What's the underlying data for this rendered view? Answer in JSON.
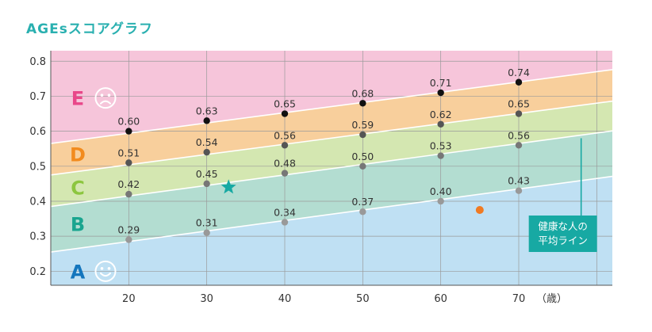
{
  "title": "AGEsスコアグラフ",
  "colors": {
    "title": "#2ab0b0",
    "zone_A": "#bfe0f3",
    "zone_B": "#b3ddd1",
    "zone_C": "#d4e7b1",
    "zone_D": "#f8cf9c",
    "zone_E": "#f6c5da",
    "zone_A_letter": "#1476bd",
    "zone_B_letter": "#19a58f",
    "zone_C_letter": "#8cc63f",
    "zone_D_letter": "#f28b1e",
    "zone_E_letter": "#e94789",
    "callout": "#17a9a3",
    "marker_orange": "#f07a22",
    "marker_star": "#17a9a3"
  },
  "chart_data": {
    "type": "scatter",
    "xlim": [
      10,
      82
    ],
    "ylim": [
      0.16,
      0.83
    ],
    "x_ticks": [
      "20",
      "30",
      "40",
      "50",
      "60",
      "70"
    ],
    "y_ticks": [
      "0.2",
      "0.3",
      "0.4",
      "0.5",
      "0.6",
      "0.7",
      "0.8"
    ],
    "x_unit": "（歳）",
    "grid": true,
    "zones": [
      {
        "letter": "A",
        "face": "smile-icon"
      },
      {
        "letter": "B"
      },
      {
        "letter": "C"
      },
      {
        "letter": "D"
      },
      {
        "letter": "E",
        "face": "frown-icon"
      }
    ],
    "boundaries": [
      {
        "x": [
          10,
          80
        ],
        "y": [
          0.255,
          0.465
        ]
      },
      {
        "x": [
          10,
          80
        ],
        "y": [
          0.385,
          0.595
        ]
      },
      {
        "x": [
          10,
          80
        ],
        "y": [
          0.475,
          0.68
        ]
      },
      {
        "x": [
          10,
          80
        ],
        "y": [
          0.565,
          0.77
        ]
      }
    ],
    "series": [
      {
        "x": [
          20,
          30,
          40,
          50,
          60,
          70
        ],
        "y": [
          0.6,
          0.63,
          0.65,
          0.68,
          0.71,
          0.74
        ],
        "labels": [
          "0.60",
          "0.63",
          "0.65",
          "0.68",
          "0.71",
          "0.74"
        ],
        "color": "#111111"
      },
      {
        "x": [
          20,
          30,
          40,
          50,
          60,
          70
        ],
        "y": [
          0.51,
          0.54,
          0.56,
          0.59,
          0.62,
          0.65
        ],
        "labels": [
          "0.51",
          "0.54",
          "0.56",
          "0.59",
          "0.62",
          "0.65"
        ],
        "color": "#555555"
      },
      {
        "x": [
          20,
          30,
          40,
          50,
          60,
          70
        ],
        "y": [
          0.42,
          0.45,
          0.48,
          0.5,
          0.53,
          0.56
        ],
        "labels": [
          "0.42",
          "0.45",
          "0.48",
          "0.50",
          "0.53",
          "0.56"
        ],
        "color": "#777777"
      },
      {
        "x": [
          20,
          30,
          40,
          50,
          60,
          70
        ],
        "y": [
          0.29,
          0.31,
          0.34,
          0.37,
          0.4,
          0.43
        ],
        "labels": [
          "0.29",
          "0.31",
          "0.34",
          "0.37",
          "0.40",
          "0.43"
        ],
        "color": "#999999"
      }
    ],
    "markers": [
      {
        "shape": "star",
        "x": 32.8,
        "y": 0.44
      },
      {
        "shape": "circle",
        "x": 65,
        "y": 0.375
      }
    ],
    "annotation": {
      "lines": [
        "健康な人の",
        "平均ライン"
      ],
      "pointer_x": 78,
      "pointer_y_top": 0.58
    }
  }
}
